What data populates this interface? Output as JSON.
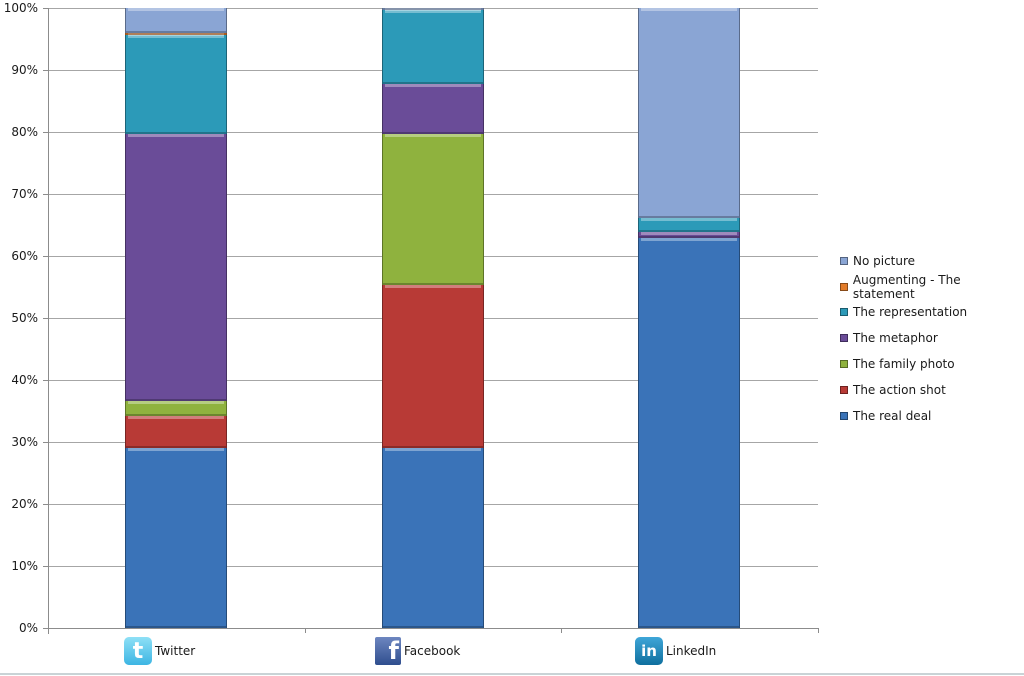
{
  "chart_data": {
    "type": "bar",
    "stacked": true,
    "percent_stacked": true,
    "title": "",
    "xlabel": "",
    "ylabel": "",
    "ylim": [
      0,
      100
    ],
    "y_ticks": [
      "0%",
      "10%",
      "20%",
      "30%",
      "40%",
      "50%",
      "60%",
      "70%",
      "80%",
      "90%",
      "100%"
    ],
    "grid": true,
    "legend_position": "right",
    "categories": [
      "Twitter",
      "Facebook",
      "LinkedIn"
    ],
    "category_icons": [
      "twitter-icon",
      "facebook-icon",
      "linkedin-icon"
    ],
    "series": [
      {
        "name": "The real deal",
        "color": "#3a73b8",
        "values": [
          29.0,
          29.0,
          62.9
        ]
      },
      {
        "name": "The action shot",
        "color": "#b83a36",
        "values": [
          5.2,
          26.3,
          0.0
        ]
      },
      {
        "name": "The family photo",
        "color": "#8fb23e",
        "values": [
          2.4,
          24.4,
          0.0
        ]
      },
      {
        "name": "The metaphor",
        "color": "#6a4c98",
        "values": [
          43.1,
          8.1,
          1.0
        ]
      },
      {
        "name": "The representation",
        "color": "#2c9ab8",
        "values": [
          16.0,
          11.8,
          2.3
        ]
      },
      {
        "name": "Augmenting - The statement",
        "color": "#e27c2a",
        "values": [
          0.3,
          0.0,
          0.0
        ]
      },
      {
        "name": "No picture",
        "color": "#8aa5d4",
        "values": [
          4.0,
          0.4,
          33.8
        ]
      }
    ]
  },
  "legend": {
    "items": [
      {
        "label": "No picture",
        "color": "#8aa5d4"
      },
      {
        "label": "Augmenting - The statement",
        "color": "#e27c2a"
      },
      {
        "label": "The representation",
        "color": "#2c9ab8"
      },
      {
        "label": "The metaphor",
        "color": "#6a4c98"
      },
      {
        "label": "The family photo",
        "color": "#8fb23e"
      },
      {
        "label": "The action shot",
        "color": "#b83a36"
      },
      {
        "label": "The real deal",
        "color": "#3a73b8"
      }
    ]
  },
  "xaxis": {
    "labels": [
      {
        "text": "Twitter",
        "icon": "t",
        "icon_class": "twitter"
      },
      {
        "text": "Facebook",
        "icon": "f",
        "icon_class": "facebook"
      },
      {
        "text": "LinkedIn",
        "icon": "in",
        "icon_class": "linkedin"
      }
    ]
  }
}
